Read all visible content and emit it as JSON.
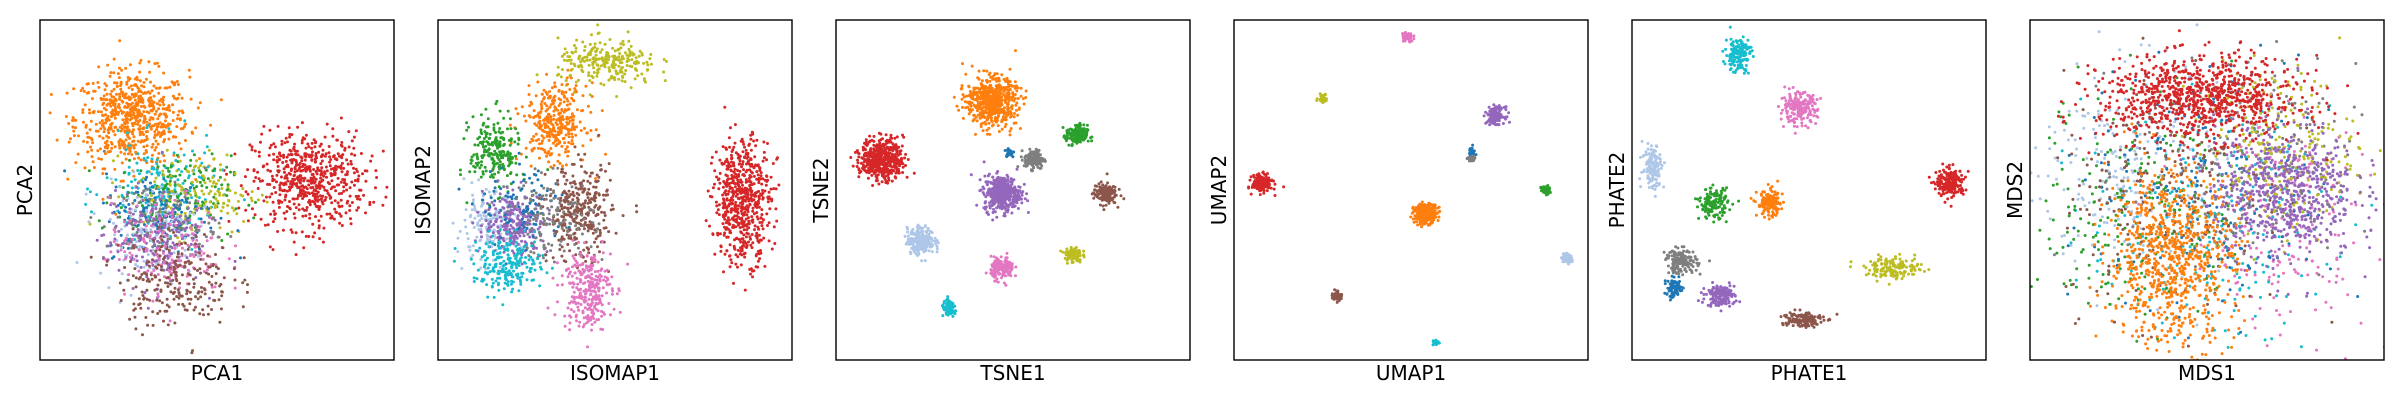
{
  "figure": {
    "panel_count": 6
  },
  "colors": {
    "blue": "#1f77b4",
    "light_blue": "#aec7e8",
    "orange": "#ff7f0e",
    "green": "#2ca02c",
    "red": "#d62728",
    "purple": "#9467bd",
    "brown": "#8c564b",
    "pink": "#e377c2",
    "gray": "#7f7f7f",
    "olive": "#bcbd22",
    "cyan": "#17becf"
  },
  "chart_data": [
    {
      "type": "scatter",
      "title": "",
      "xlabel": "PCA1",
      "ylabel": "PCA2",
      "xlim": [
        0,
        100
      ],
      "ylim": [
        0,
        100
      ],
      "ticks": "none",
      "grid": false,
      "clusters": [
        {
          "color": "orange",
          "cx": 26,
          "cy": 71,
          "sx": 8,
          "sy": 7,
          "n": 650
        },
        {
          "color": "red",
          "cx": 76,
          "cy": 53,
          "sx": 8,
          "sy": 7,
          "n": 600
        },
        {
          "color": "cyan",
          "cx": 34,
          "cy": 50,
          "sx": 8,
          "sy": 7,
          "n": 160
        },
        {
          "color": "green",
          "cx": 38,
          "cy": 48,
          "sx": 8,
          "sy": 6,
          "n": 160
        },
        {
          "color": "olive",
          "cx": 44,
          "cy": 49,
          "sx": 9,
          "sy": 6,
          "n": 150
        },
        {
          "color": "blue",
          "cx": 34,
          "cy": 43,
          "sx": 8,
          "sy": 6,
          "n": 140
        },
        {
          "color": "light_blue",
          "cx": 30,
          "cy": 38,
          "sx": 7,
          "sy": 7,
          "n": 140
        },
        {
          "color": "gray",
          "cx": 34,
          "cy": 40,
          "sx": 8,
          "sy": 6,
          "n": 120
        },
        {
          "color": "purple",
          "cx": 32,
          "cy": 36,
          "sx": 7,
          "sy": 7,
          "n": 170
        },
        {
          "color": "pink",
          "cx": 36,
          "cy": 33,
          "sx": 8,
          "sy": 7,
          "n": 160
        },
        {
          "color": "brown",
          "cx": 38,
          "cy": 24,
          "sx": 8,
          "sy": 7,
          "n": 240
        }
      ]
    },
    {
      "type": "scatter",
      "title": "",
      "xlabel": "ISOMAP1",
      "ylabel": "ISOMAP2",
      "xlim": [
        0,
        100
      ],
      "ylim": [
        0,
        100
      ],
      "ticks": "none",
      "grid": false,
      "clusters": [
        {
          "color": "olive",
          "cx": 48,
          "cy": 87,
          "sx": 7,
          "sy": 3.5,
          "n": 250
        },
        {
          "color": "orange",
          "cx": 33,
          "cy": 70,
          "sx": 4.5,
          "sy": 5.5,
          "n": 330
        },
        {
          "color": "green",
          "cx": 16,
          "cy": 61,
          "sx": 3.5,
          "sy": 5.5,
          "n": 220
        },
        {
          "color": "red",
          "cx": 86,
          "cy": 47,
          "sx": 4,
          "sy": 9,
          "n": 600
        },
        {
          "color": "light_blue",
          "cx": 14,
          "cy": 39,
          "sx": 4.5,
          "sy": 5,
          "n": 160
        },
        {
          "color": "purple",
          "cx": 22,
          "cy": 40,
          "sx": 4.5,
          "sy": 4.5,
          "n": 260
        },
        {
          "color": "blue",
          "cx": 24,
          "cy": 45,
          "sx": 6,
          "sy": 6,
          "n": 90
        },
        {
          "color": "brown",
          "cx": 40,
          "cy": 43,
          "sx": 4.5,
          "sy": 7,
          "n": 320
        },
        {
          "color": "gray",
          "cx": 32,
          "cy": 42,
          "sx": 6,
          "sy": 6,
          "n": 130
        },
        {
          "color": "cyan",
          "cx": 20,
          "cy": 28,
          "sx": 5,
          "sy": 4,
          "n": 220
        },
        {
          "color": "pink",
          "cx": 42,
          "cy": 21,
          "sx": 3.5,
          "sy": 6,
          "n": 280
        }
      ]
    },
    {
      "type": "scatter",
      "title": "",
      "xlabel": "TSNE1",
      "ylabel": "TSNE2",
      "xlim": [
        0,
        100
      ],
      "ylim": [
        0,
        100
      ],
      "ticks": "none",
      "grid": false,
      "clusters": [
        {
          "color": "orange",
          "cx": 44,
          "cy": 76,
          "sx": 3.5,
          "sy": 3.5,
          "n": 600
        },
        {
          "color": "red",
          "cx": 13,
          "cy": 59,
          "sx": 3,
          "sy": 3,
          "n": 500
        },
        {
          "color": "green",
          "cx": 68,
          "cy": 66,
          "sx": 1.5,
          "sy": 1.5,
          "n": 160
        },
        {
          "color": "gray",
          "cx": 56,
          "cy": 59,
          "sx": 1.4,
          "sy": 1.4,
          "n": 140
        },
        {
          "color": "blue",
          "cx": 49,
          "cy": 61,
          "sx": 0.7,
          "sy": 0.7,
          "n": 30
        },
        {
          "color": "purple",
          "cx": 47,
          "cy": 49,
          "sx": 2.6,
          "sy": 2.6,
          "n": 400
        },
        {
          "color": "brown",
          "cx": 76,
          "cy": 49,
          "sx": 1.6,
          "sy": 1.6,
          "n": 160
        },
        {
          "color": "light_blue",
          "cx": 24,
          "cy": 35,
          "sx": 1.9,
          "sy": 1.9,
          "n": 250
        },
        {
          "color": "olive",
          "cx": 67,
          "cy": 31,
          "sx": 1.2,
          "sy": 1.2,
          "n": 100
        },
        {
          "color": "pink",
          "cx": 47,
          "cy": 27,
          "sx": 1.6,
          "sy": 1.6,
          "n": 160
        },
        {
          "color": "cyan",
          "cx": 32,
          "cy": 15,
          "sx": 1.1,
          "sy": 1.1,
          "n": 80
        }
      ]
    },
    {
      "type": "scatter",
      "title": "",
      "xlabel": "UMAP1",
      "ylabel": "UMAP2",
      "xlim": [
        0,
        100
      ],
      "ylim": [
        0,
        100
      ],
      "ticks": "none",
      "grid": false,
      "clusters": [
        {
          "color": "pink",
          "cx": 49,
          "cy": 95,
          "sx": 0.8,
          "sy": 0.8,
          "n": 60
        },
        {
          "color": "olive",
          "cx": 25,
          "cy": 77,
          "sx": 0.6,
          "sy": 0.6,
          "n": 40
        },
        {
          "color": "purple",
          "cx": 74,
          "cy": 72,
          "sx": 1.2,
          "sy": 1.2,
          "n": 160
        },
        {
          "color": "blue",
          "cx": 67,
          "cy": 61,
          "sx": 0.5,
          "sy": 0.8,
          "n": 30
        },
        {
          "color": "gray",
          "cx": 67,
          "cy": 59,
          "sx": 0.5,
          "sy": 0.5,
          "n": 30
        },
        {
          "color": "red",
          "cx": 8,
          "cy": 52,
          "sx": 1.4,
          "sy": 1.2,
          "n": 200
        },
        {
          "color": "green",
          "cx": 88,
          "cy": 50,
          "sx": 0.6,
          "sy": 0.6,
          "n": 60
        },
        {
          "color": "orange",
          "cx": 54,
          "cy": 43,
          "sx": 1.6,
          "sy": 1.4,
          "n": 300
        },
        {
          "color": "light_blue",
          "cx": 94,
          "cy": 30,
          "sx": 0.7,
          "sy": 0.7,
          "n": 60
        },
        {
          "color": "brown",
          "cx": 29,
          "cy": 19,
          "sx": 0.7,
          "sy": 0.7,
          "n": 60
        },
        {
          "color": "cyan",
          "cx": 57,
          "cy": 5,
          "sx": 0.5,
          "sy": 0.5,
          "n": 20
        }
      ]
    },
    {
      "type": "scatter",
      "title": "",
      "xlabel": "PHATE1",
      "ylabel": "PHATE2",
      "xlim": [
        0,
        100
      ],
      "ylim": [
        0,
        100
      ],
      "ticks": "none",
      "grid": false,
      "clusters": [
        {
          "color": "cyan",
          "cx": 30,
          "cy": 90,
          "sx": 1.8,
          "sy": 2.6,
          "n": 150
        },
        {
          "color": "pink",
          "cx": 47,
          "cy": 74,
          "sx": 2.6,
          "sy": 2.2,
          "n": 200
        },
        {
          "color": "light_blue",
          "cx": 6,
          "cy": 57,
          "sx": 1.5,
          "sy": 3.4,
          "n": 130
        },
        {
          "color": "red",
          "cx": 90,
          "cy": 52,
          "sx": 2,
          "sy": 2,
          "n": 200
        },
        {
          "color": "green",
          "cx": 23,
          "cy": 46,
          "sx": 2,
          "sy": 2.2,
          "n": 150
        },
        {
          "color": "orange",
          "cx": 39,
          "cy": 46,
          "sx": 1.8,
          "sy": 2,
          "n": 150
        },
        {
          "color": "gray",
          "cx": 14,
          "cy": 29,
          "sx": 2.2,
          "sy": 1.8,
          "n": 150
        },
        {
          "color": "olive",
          "cx": 74,
          "cy": 27,
          "sx": 4,
          "sy": 1.6,
          "n": 150
        },
        {
          "color": "blue",
          "cx": 12,
          "cy": 21,
          "sx": 1.4,
          "sy": 1.4,
          "n": 70
        },
        {
          "color": "purple",
          "cx": 25,
          "cy": 19,
          "sx": 2,
          "sy": 1.6,
          "n": 150
        },
        {
          "color": "brown",
          "cx": 48,
          "cy": 12,
          "sx": 3,
          "sy": 1.2,
          "n": 150
        }
      ]
    },
    {
      "type": "scatter",
      "title": "",
      "xlabel": "MDS1",
      "ylabel": "MDS2",
      "xlim": [
        0,
        100
      ],
      "ylim": [
        0,
        100
      ],
      "ticks": "none",
      "grid": false,
      "clusters": [
        {
          "color": "light_blue",
          "cx": 28,
          "cy": 55,
          "sx": 13,
          "sy": 16,
          "n": 220
        },
        {
          "color": "pink",
          "cx": 70,
          "cy": 40,
          "sx": 13,
          "sy": 16,
          "n": 220
        },
        {
          "color": "cyan",
          "cx": 50,
          "cy": 40,
          "sx": 17,
          "sy": 16,
          "n": 220
        },
        {
          "color": "green",
          "cx": 30,
          "cy": 45,
          "sx": 14,
          "sy": 18,
          "n": 220
        },
        {
          "color": "blue",
          "cx": 50,
          "cy": 50,
          "sx": 18,
          "sy": 18,
          "n": 220
        },
        {
          "color": "gray",
          "cx": 60,
          "cy": 55,
          "sx": 16,
          "sy": 16,
          "n": 220
        },
        {
          "color": "brown",
          "cx": 40,
          "cy": 50,
          "sx": 16,
          "sy": 18,
          "n": 220
        },
        {
          "color": "olive",
          "cx": 70,
          "cy": 62,
          "sx": 11,
          "sy": 12,
          "n": 260
        },
        {
          "color": "purple",
          "cx": 72,
          "cy": 50,
          "sx": 10,
          "sy": 10,
          "n": 600
        },
        {
          "color": "red",
          "cx": 48,
          "cy": 77,
          "sx": 14,
          "sy": 6,
          "n": 900
        },
        {
          "color": "orange",
          "cx": 40,
          "cy": 30,
          "sx": 9,
          "sy": 13,
          "n": 800
        }
      ]
    }
  ]
}
